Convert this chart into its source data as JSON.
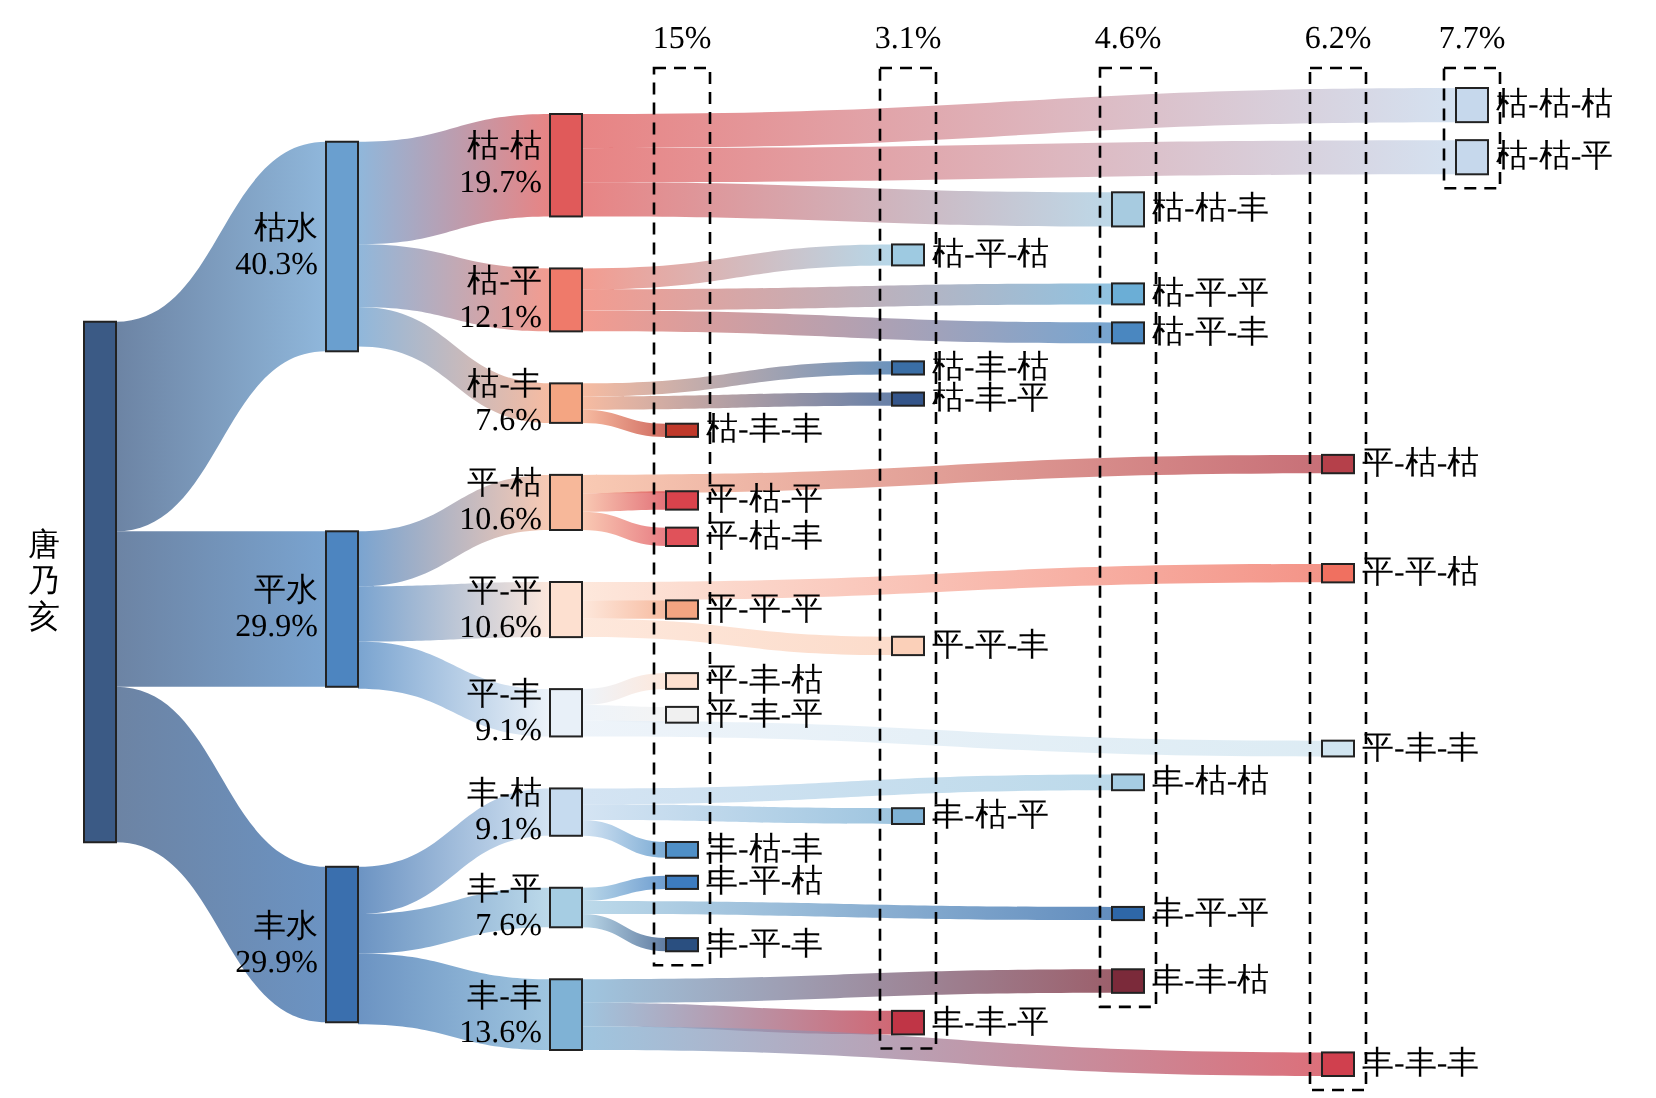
{
  "chart_data": {
    "type": "other",
    "categories": [
      "唐乃亥",
      "枯水",
      "平水",
      "丰水",
      "枯-枯",
      "枯-平",
      "枯-丰",
      "平-枯",
      "平-平",
      "平-丰",
      "丰-枯",
      "丰-平",
      "丰-丰",
      "枯-枯-枯",
      "枯-枯-平",
      "枯-枯-丰",
      "枯-平-枯",
      "枯-平-平",
      "枯-平-丰",
      "枯-丰-枯",
      "枯-丰-平",
      "枯-丰-丰",
      "平-枯-枯",
      "平-枯-平",
      "平-枯-丰",
      "平-平-枯",
      "平-平-平",
      "平-平-丰",
      "平-丰-枯",
      "平-丰-平",
      "平-丰-丰",
      "丰-枯-枯",
      "丰-枯-平",
      "丰-枯-丰",
      "丰-平-枯",
      "丰-平-平",
      "丰-平-丰",
      "丰-丰-枯",
      "丰-丰-平",
      "丰-丰-丰"
    ],
    "values": [
      null,
      40.3,
      29.9,
      29.9,
      19.7,
      12.1,
      7.6,
      10.6,
      10.6,
      9.1,
      9.1,
      7.6,
      13.6,
      null,
      null,
      null,
      null,
      null,
      null,
      null,
      null,
      null,
      null,
      null,
      null,
      null,
      null,
      null,
      null,
      null,
      null,
      null,
      null,
      null,
      null,
      null,
      null,
      null,
      null,
      null
    ],
    "value_labels": [
      null,
      "40.3%",
      "29.9%",
      "29.9%",
      "19.7%",
      "12.1%",
      "7.6%",
      "10.6%",
      "10.6%",
      "9.1%",
      "9.1%",
      "7.6%",
      "13.6%",
      null,
      null,
      null,
      null,
      null,
      null,
      null,
      null,
      null,
      null,
      null,
      null,
      null,
      null,
      null,
      null,
      null,
      null,
      null,
      null,
      null,
      null,
      null,
      null,
      null,
      null,
      null
    ],
    "annotations": [
      "15%",
      "3.1%",
      "4.6%",
      "6.2%",
      "7.7%"
    ],
    "colors": [
      "#3b5a85",
      "#6a9fcf",
      "#4d85c0",
      "#3a6fae",
      "#e05a5a",
      "#ef7a6a",
      "#f4a582",
      "#f7b89a",
      "#fde0d0",
      "#e8f0f8",
      "#c6dbef",
      "#a6cde3",
      "#7fb2d5",
      "#c6d8ec",
      "#c6d8ec",
      "#a7cbe0",
      "#9ecae1",
      "#6baed6",
      "#4a87c0",
      "#3a6ea5",
      "#34558a",
      "#c0392b",
      "#b5404a",
      "#d9434c",
      "#e0525a",
      "#f07060",
      "#f4a582",
      "#fbd0b9",
      "#fde0d0",
      "#f0f0f0",
      "#d1e5f0",
      "#a6cde3",
      "#7fb2d5",
      "#4f8fc6",
      "#3d7cc0",
      "#2e67a8",
      "#2a4f80",
      "#7b2a3a",
      "#c03546",
      "#d0404e"
    ]
  }
}
